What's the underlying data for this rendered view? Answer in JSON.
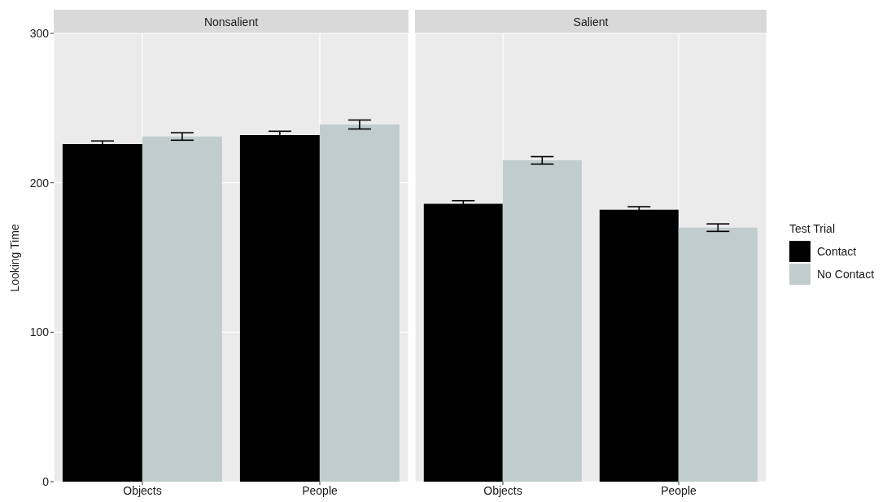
{
  "chart_data": [
    {
      "type": "bar",
      "title": "Nonsalient",
      "ylabel": "Looking Time",
      "categories": [
        "Objects",
        "People"
      ],
      "series": [
        {
          "color": "#000000",
          "values": [
            226,
            232
          ],
          "errors": [
            2,
            2.5
          ]
        },
        {
          "color": "#c1cdcd",
          "values": [
            231,
            239
          ],
          "errors": [
            2.5,
            3
          ]
        }
      ],
      "ylim": [
        0,
        300
      ],
      "yticks": [
        0,
        100,
        200,
        300
      ],
      "grid": true,
      "legend": false
    },
    {
      "type": "bar",
      "title": "Salient",
      "legend_title": "Test Trial",
      "categories": [
        "Objects",
        "People"
      ],
      "series": [
        {
          "name": "Contact",
          "color": "#000000",
          "values": [
            186,
            182
          ],
          "errors": [
            2,
            2
          ]
        },
        {
          "name": "No Contact",
          "color": "#c1cdcd",
          "values": [
            215,
            170
          ],
          "errors": [
            2.5,
            2.5
          ]
        }
      ],
      "ylim": [
        0,
        300
      ],
      "yticks": [
        0,
        100,
        200,
        300
      ],
      "grid": true,
      "legend": "right",
      "tick_labels": "x"
    }
  ]
}
